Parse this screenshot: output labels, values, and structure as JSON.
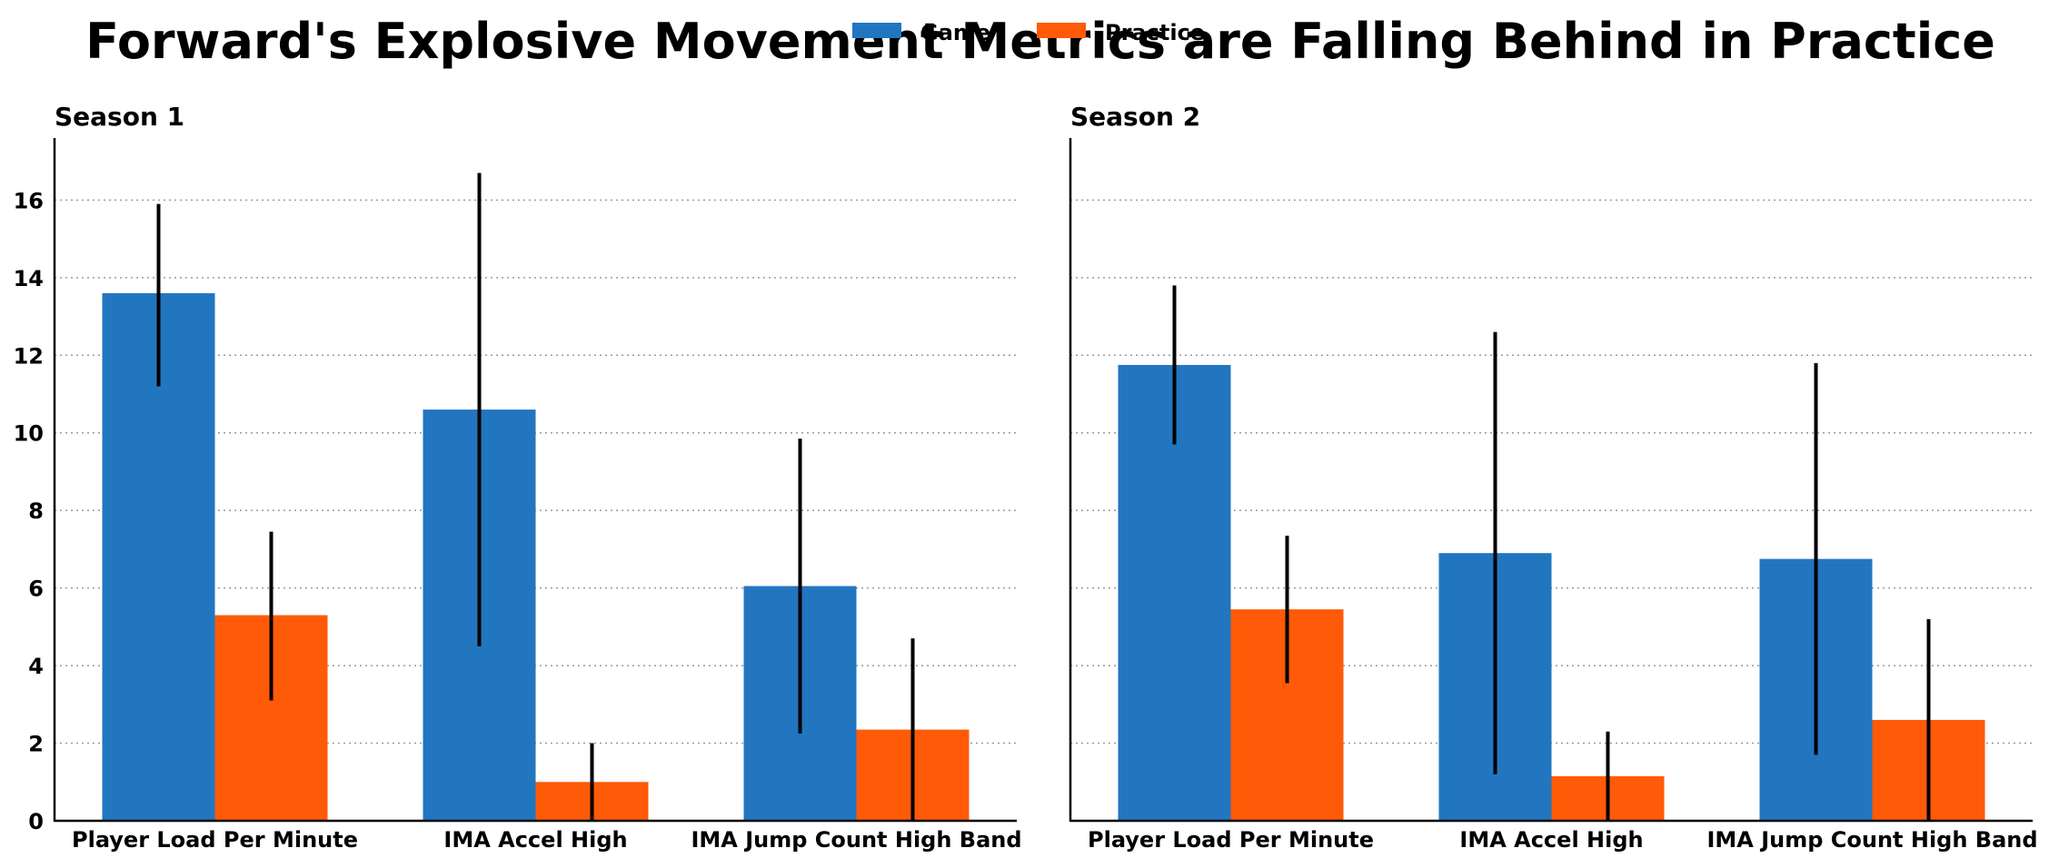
{
  "title": "Forward's Explosive Movement Metrics are Falling Behind in Practice",
  "chart_data": {
    "type": "bar",
    "legend": {
      "placement": "top-center",
      "entries": [
        {
          "name": "Game",
          "color": "#2276c0"
        },
        {
          "name": "Practice",
          "color": "#ff5a08"
        }
      ]
    },
    "ylim": [
      0,
      17.6
    ],
    "yticks": [
      0,
      2,
      4,
      6,
      8,
      10,
      12,
      14,
      16
    ],
    "grid": "horizontal dotted",
    "error_bar_color": "#000000",
    "panels": [
      {
        "title": "Season 1",
        "categories": [
          "Player Load Per Minute",
          "IMA Accel High",
          "IMA Jump Count High Band"
        ],
        "series": [
          {
            "name": "Game",
            "values": [
              13.6,
              10.6,
              6.05
            ],
            "err_low": [
              11.2,
              4.5,
              2.25
            ],
            "err_high": [
              15.9,
              16.7,
              9.85
            ]
          },
          {
            "name": "Practice",
            "values": [
              5.3,
              1.0,
              2.35
            ],
            "err_low": [
              3.1,
              0.0,
              0.0
            ],
            "err_high": [
              7.45,
              2.0,
              4.7
            ]
          }
        ]
      },
      {
        "title": "Season 2",
        "categories": [
          "Player Load Per Minute",
          "IMA Accel High",
          "IMA Jump Count High Band"
        ],
        "series": [
          {
            "name": "Game",
            "values": [
              11.75,
              6.9,
              6.75
            ],
            "err_low": [
              9.7,
              1.2,
              1.7
            ],
            "err_high": [
              13.8,
              12.6,
              11.8
            ]
          },
          {
            "name": "Practice",
            "values": [
              5.45,
              1.15,
              2.6
            ],
            "err_low": [
              3.55,
              0.0,
              0.0
            ],
            "err_high": [
              7.35,
              2.3,
              5.2
            ]
          }
        ]
      }
    ]
  }
}
